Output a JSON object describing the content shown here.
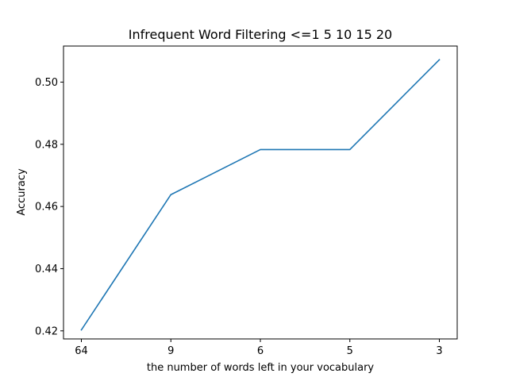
{
  "chart_data": {
    "type": "line",
    "title": "Infrequent Word Filtering <=1 5 10 15 20",
    "xlabel": "the number of words left in your vocabulary",
    "ylabel": "Accuracy",
    "categories": [
      "64",
      "9",
      "6",
      "5",
      "3"
    ],
    "series": [
      {
        "values": [
          0.4203,
          0.4638,
          0.4783,
          0.4783,
          0.5072
        ],
        "color": "#1f77b4"
      }
    ],
    "ylim": [
      0.4174,
      0.5116
    ],
    "yticks": [
      0.42,
      0.44,
      0.46,
      0.48,
      0.5
    ],
    "ytick_labels": [
      "0.42",
      "0.44",
      "0.46",
      "0.48",
      "0.50"
    ],
    "grid": false,
    "legend": "none"
  }
}
